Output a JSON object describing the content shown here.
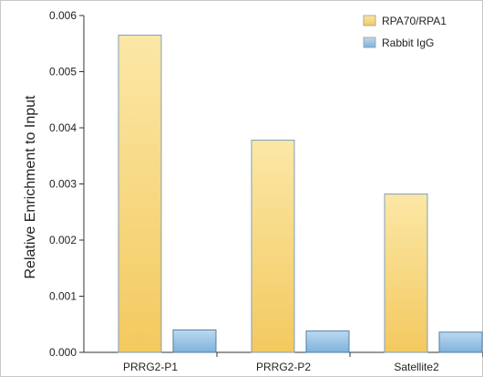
{
  "chart_data": {
    "type": "bar",
    "title": "",
    "xlabel": "",
    "ylabel": "Relative Enrichment to Input",
    "ylim": [
      0,
      0.006
    ],
    "yticks": [
      "0.000",
      "0.001",
      "0.002",
      "0.003",
      "0.004",
      "0.005",
      "0.006"
    ],
    "categories": [
      "PRRG2-P1",
      "PRRG2-P2",
      "Satellite2"
    ],
    "series": [
      {
        "name": "RPA70/RPA1",
        "values": [
          0.00565,
          0.00378,
          0.00282
        ],
        "color_top": "#fbe7a6",
        "color_bottom": "#f3c95f",
        "stroke": "#7f9fbf"
      },
      {
        "name": "Rabbit IgG",
        "values": [
          0.0004,
          0.00038,
          0.00036
        ],
        "color_top": "#bcd9ef",
        "color_bottom": "#7fb2dc",
        "stroke": "#4f7fa8"
      }
    ],
    "legend": "top-right",
    "grid": false
  }
}
